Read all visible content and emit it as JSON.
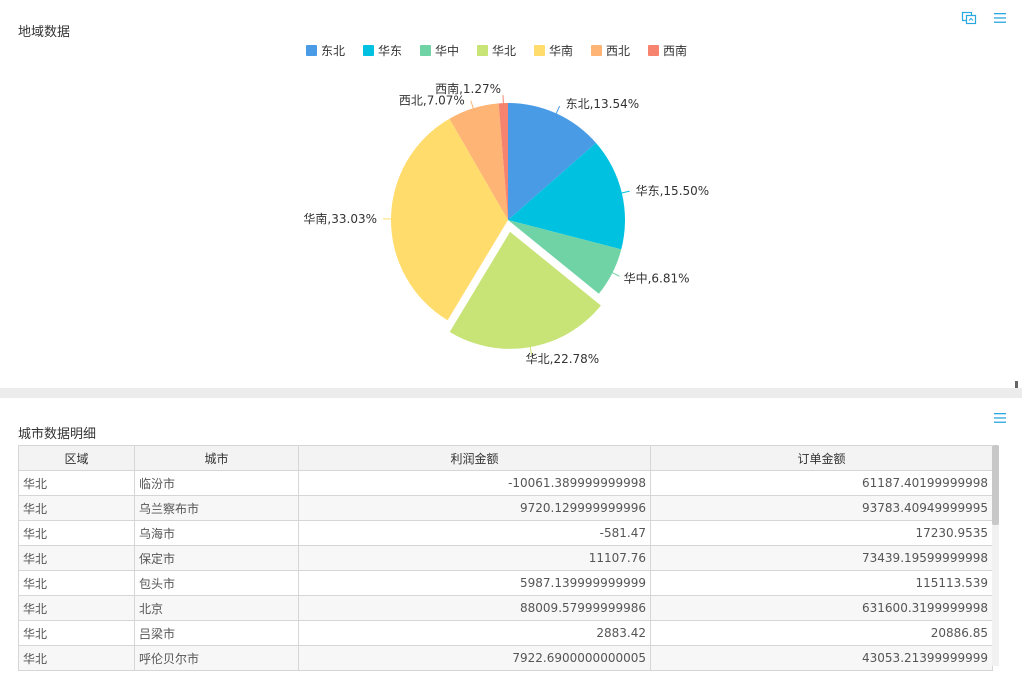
{
  "region_panel": {
    "title": "地域数据"
  },
  "detail_panel": {
    "title": "城市数据明细"
  },
  "colors": {
    "东北": "#4a9be6",
    "华东": "#00c1e0",
    "华中": "#6fd3a6",
    "华北": "#c8e477",
    "华南": "#ffdc6c",
    "西北": "#fdb474",
    "西南": "#f6836e",
    "icon": "#2aa8e0"
  },
  "chart_data": {
    "type": "pie",
    "legend_placement": "top",
    "slices": [
      {
        "name": "东北",
        "value": 13.54,
        "label": "东北,13.54%"
      },
      {
        "name": "华东",
        "value": 15.5,
        "label": "华东,15.50%"
      },
      {
        "name": "华中",
        "value": 6.81,
        "label": "华中,6.81%"
      },
      {
        "name": "华北",
        "value": 22.78,
        "label": "华北,22.78%",
        "exploded": true
      },
      {
        "name": "华南",
        "value": 33.03,
        "label": "华南,33.03%"
      },
      {
        "name": "西北",
        "value": 7.07,
        "label": "西北,7.07%"
      },
      {
        "name": "西南",
        "value": 1.27,
        "label": "西南,1.27%"
      }
    ]
  },
  "table": {
    "headers": [
      "区域",
      "城市",
      "利润金额",
      "订单金额"
    ],
    "rows": [
      [
        "华北",
        "临汾市",
        "-10061.389999999998",
        "61187.40199999998"
      ],
      [
        "华北",
        "乌兰察布市",
        "9720.129999999996",
        "93783.40949999995"
      ],
      [
        "华北",
        "乌海市",
        "-581.47",
        "17230.9535"
      ],
      [
        "华北",
        "保定市",
        "11107.76",
        "73439.19599999998"
      ],
      [
        "华北",
        "包头市",
        "5987.139999999999",
        "115113.539"
      ],
      [
        "华北",
        "北京",
        "88009.57999999986",
        "631600.3199999998"
      ],
      [
        "华北",
        "吕梁市",
        "2883.42",
        "20886.85"
      ],
      [
        "华北",
        "呼伦贝尔市",
        "7922.6900000000005",
        "43053.21399999999"
      ]
    ]
  },
  "icons": {
    "switch": "switch-view-icon",
    "menu": "menu-icon",
    "resize": "resize-handle-icon"
  }
}
